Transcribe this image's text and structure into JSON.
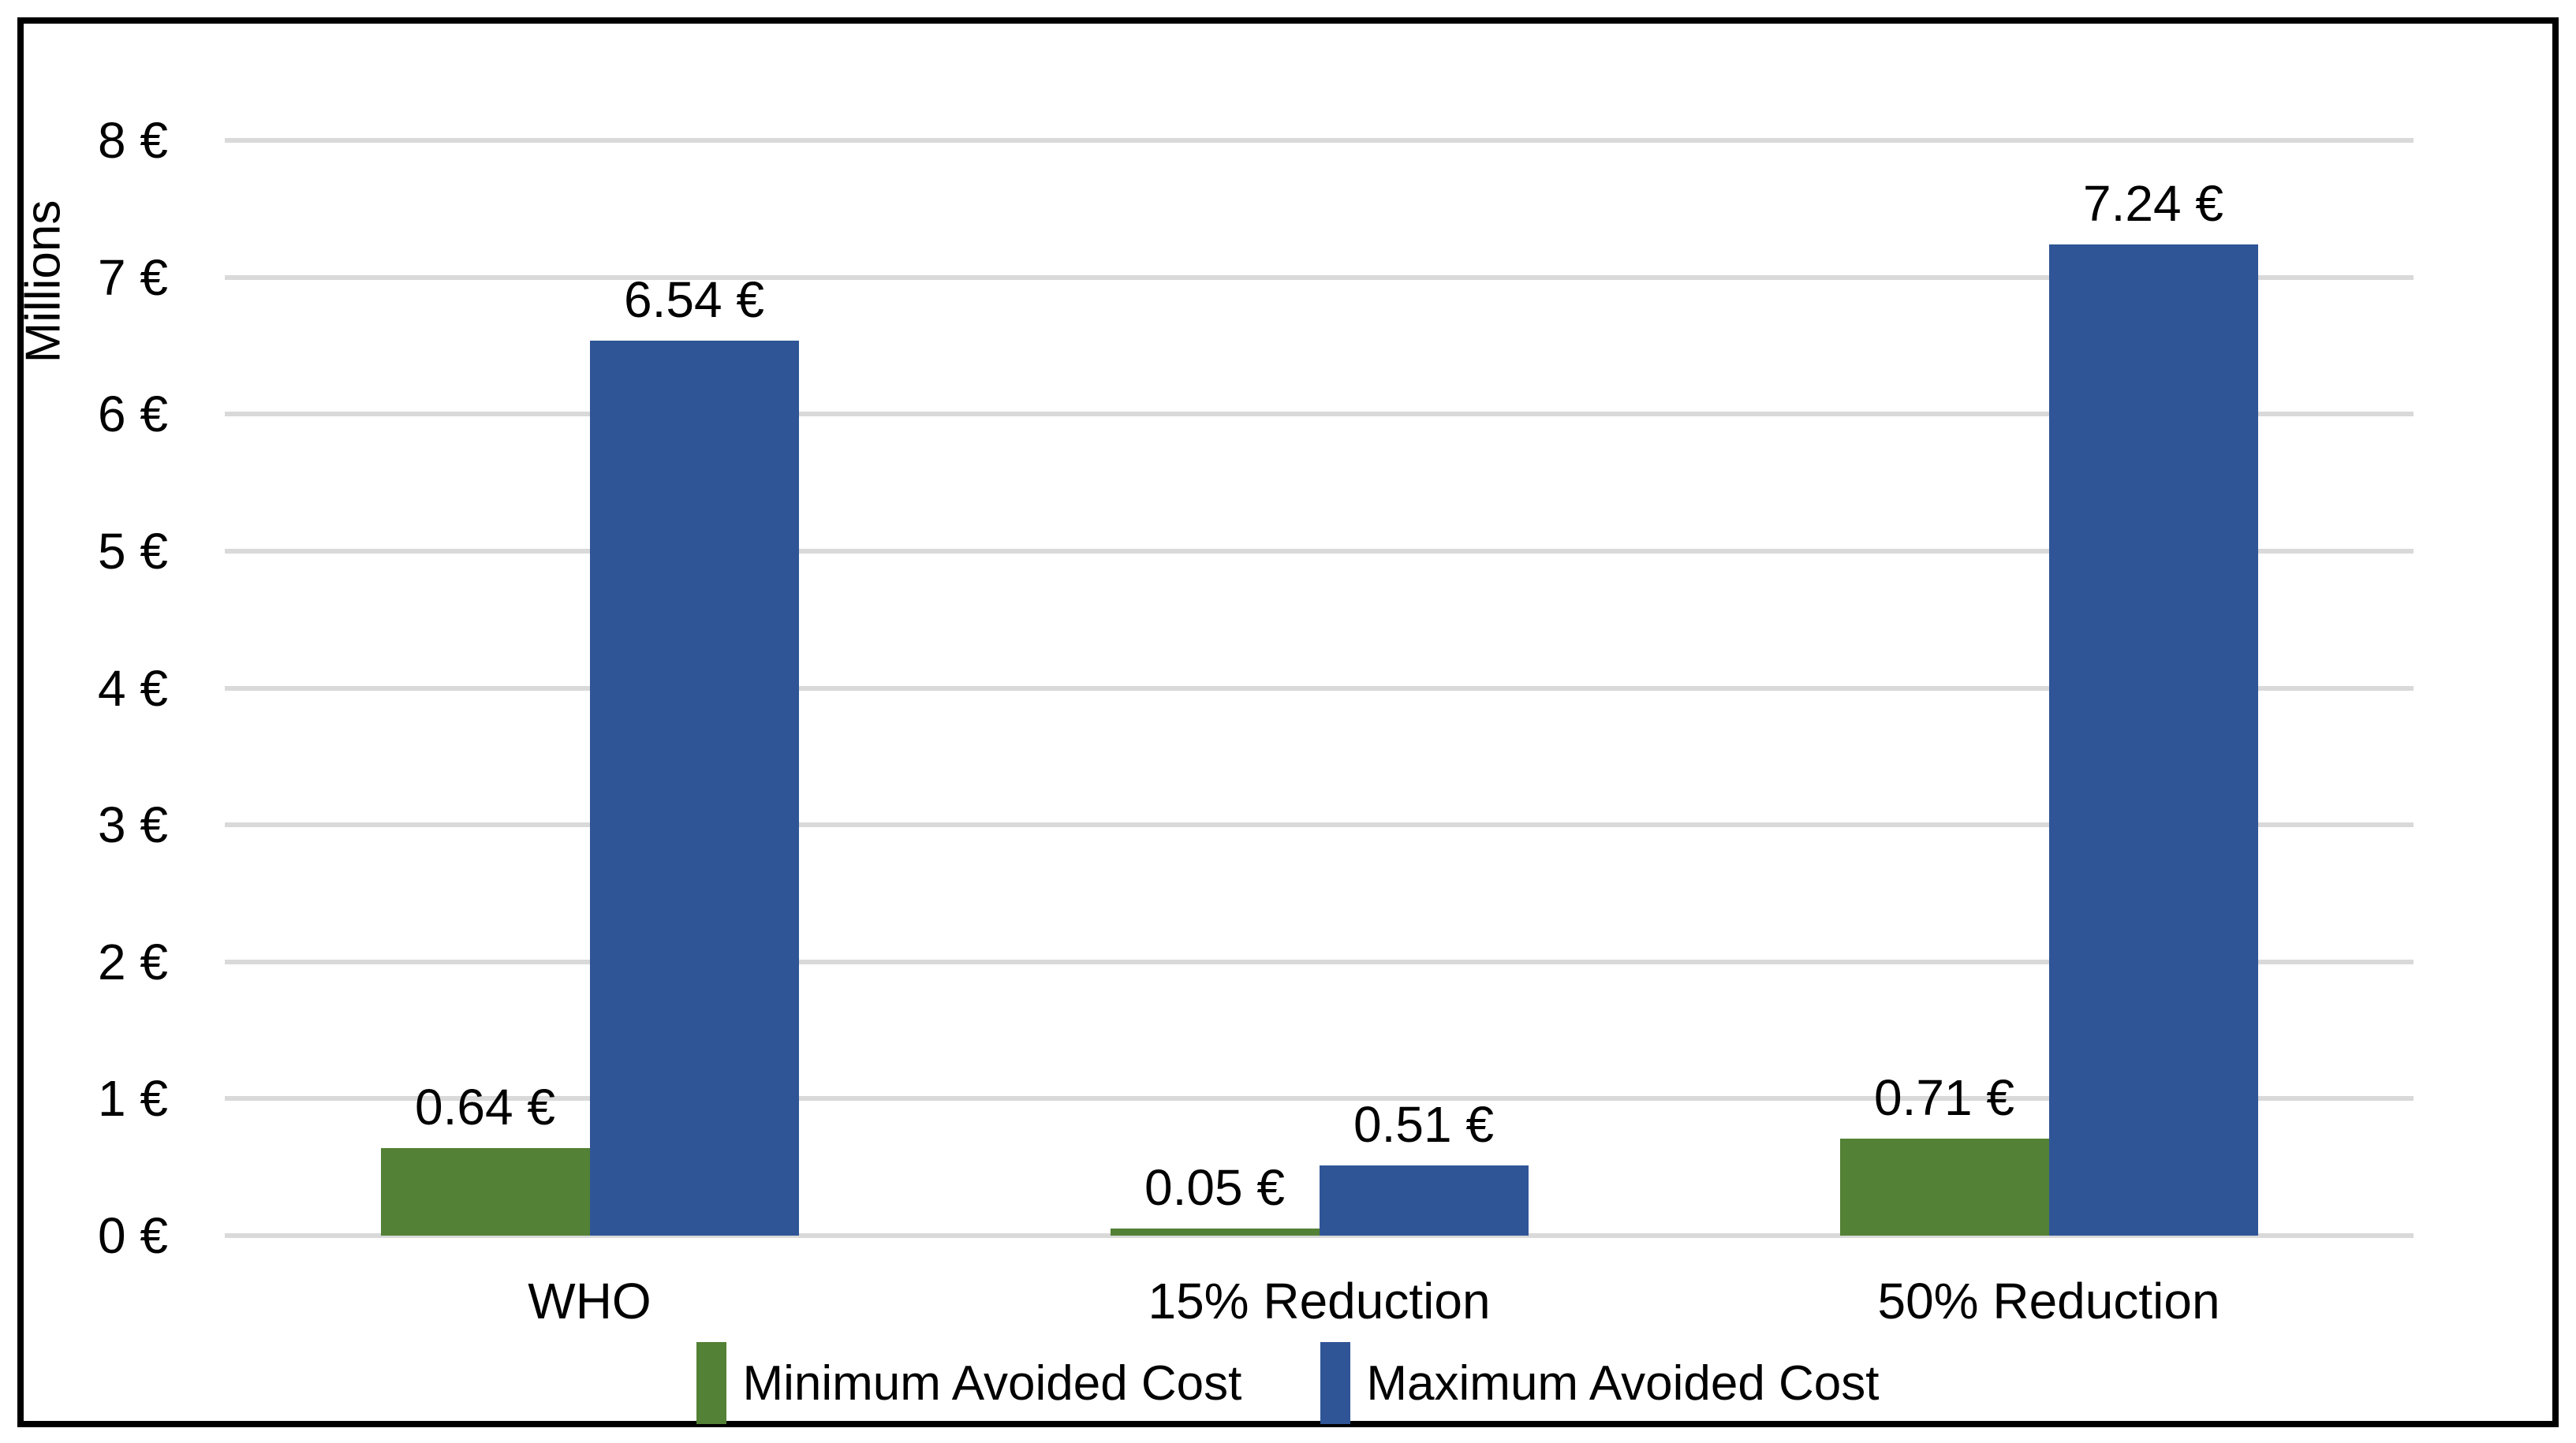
{
  "chart_data": {
    "type": "bar",
    "title": "",
    "categories": [
      "WHO",
      "15% Reduction",
      "50% Reduction"
    ],
    "series": [
      {
        "name": "Minimum Avoided Cost",
        "color": "#538135",
        "values": [
          0.64,
          0.05,
          0.71
        ],
        "labels": [
          "0.64 €",
          "0.05 €",
          "0.71 €"
        ]
      },
      {
        "name": "Maximum Avoided Cost",
        "color": "#2F5597",
        "values": [
          6.54,
          0.51,
          7.24
        ],
        "labels": [
          "6.54 €",
          "0.51 €",
          "7.24 €"
        ]
      }
    ],
    "xlabel": "",
    "ylabel": "Millions",
    "ylim": [
      0,
      8
    ],
    "ytick_step": 1,
    "ytick_labels": [
      "0 €",
      "1 €",
      "2 €",
      "3 €",
      "4 €",
      "5 €",
      "6 €",
      "7 €",
      "8 €"
    ],
    "grid": true,
    "gridline_color": "#D9D9D9",
    "frame_color": "#000000",
    "text_color": "#000000",
    "legend_position": "bottom"
  }
}
